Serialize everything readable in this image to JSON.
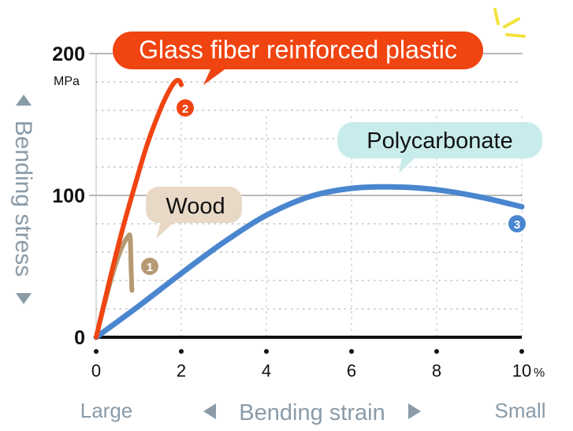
{
  "chart_data": {
    "type": "line",
    "xlabel": "Bending strain",
    "ylabel": "Bending stress",
    "x_unit": "%",
    "y_unit": "MPa",
    "xlim": [
      0,
      10
    ],
    "ylim": [
      0,
      200
    ],
    "x_ticks": [
      "0",
      "2",
      "4",
      "6",
      "8",
      "10"
    ],
    "y_ticks": [
      "0",
      "100",
      "200"
    ],
    "x_end_left": "Large",
    "x_end_right": "Small",
    "grid": "dotted horizontal lines every 20 MPa",
    "series": [
      {
        "name": "Wood",
        "badge": "1",
        "color": "#b59a73",
        "label_bg": "#e7d9c6",
        "points": [
          [
            0,
            0
          ],
          [
            0.2,
            24
          ],
          [
            0.4,
            46
          ],
          [
            0.6,
            63
          ],
          [
            0.75,
            71
          ],
          [
            0.8,
            70
          ],
          [
            0.82,
            50
          ],
          [
            0.84,
            33
          ]
        ]
      },
      {
        "name": "Glass fiber reinforced plastic",
        "badge": "2",
        "color": "#f04411",
        "label_bg": "#f04411",
        "points": [
          [
            0,
            0
          ],
          [
            0.3,
            38
          ],
          [
            0.6,
            74
          ],
          [
            0.9,
            106
          ],
          [
            1.2,
            136
          ],
          [
            1.5,
            160
          ],
          [
            1.7,
            173
          ],
          [
            1.85,
            180
          ],
          [
            1.95,
            181
          ],
          [
            2.0,
            178
          ]
        ]
      },
      {
        "name": "Polycarbonate",
        "badge": "3",
        "color": "#4a86cf",
        "label_bg": "#c8ecec",
        "points": [
          [
            0,
            0
          ],
          [
            1,
            22
          ],
          [
            2,
            45
          ],
          [
            3,
            67
          ],
          [
            4,
            86
          ],
          [
            5,
            99
          ],
          [
            6,
            105
          ],
          [
            7,
            106
          ],
          [
            8,
            104
          ],
          [
            9,
            99
          ],
          [
            10,
            92
          ]
        ]
      }
    ]
  }
}
